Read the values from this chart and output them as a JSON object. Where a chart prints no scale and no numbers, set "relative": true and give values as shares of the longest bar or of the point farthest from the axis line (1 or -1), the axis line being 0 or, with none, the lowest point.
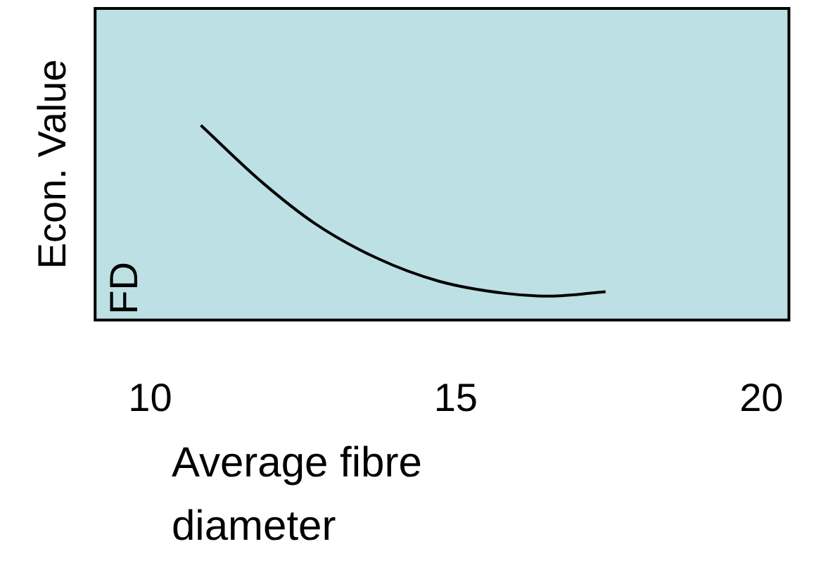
{
  "chart_data": {
    "type": "line",
    "xlabel": "Average fibre diameter",
    "ylabel": "Econ. Value",
    "annotations": [
      "FD"
    ],
    "relative": true,
    "tick_labels": "x",
    "grid": false,
    "legend": false,
    "marker": "none",
    "line_style": "solid",
    "xlim": [
      9.1,
      20.45
    ],
    "xticks": [
      10,
      15,
      20
    ],
    "series": [
      {
        "color": "#000000",
        "x": [
          10.83,
          11.83,
          12.7,
          13.71,
          14.72,
          15.81,
          16.54,
          17.45
        ],
        "values": [
          1.0,
          0.708,
          0.495,
          0.318,
          0.2,
          0.137,
          0.123,
          0.146
        ]
      }
    ]
  }
}
